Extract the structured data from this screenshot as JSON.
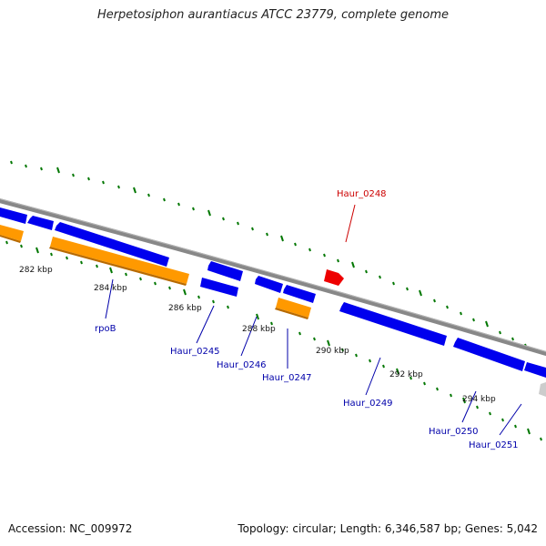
{
  "title": "Herpetosiphon aurantiacus ATCC 23779, complete genome",
  "accession": "Accession: NC_009972",
  "topology": "Topology: circular; Length: 6,346,587 bp; Genes: 5,042",
  "colors": {
    "backbone": "#888888",
    "gene": "#0000ee",
    "rrna": "#ff9900",
    "highlight": "#ee0000",
    "other": "#cccccc",
    "tick": "#007700"
  },
  "kbp_labels": [
    "282 kbp",
    "284 kbp",
    "286 kbp",
    "288 kbp",
    "290 kbp",
    "292 kbp",
    "294 kbp"
  ],
  "gene_labels": [
    "rpoB",
    "Haur_0245",
    "Haur_0246",
    "Haur_0247",
    "Haur_0248",
    "Haur_0249",
    "Haur_0250",
    "Haur_0251"
  ]
}
